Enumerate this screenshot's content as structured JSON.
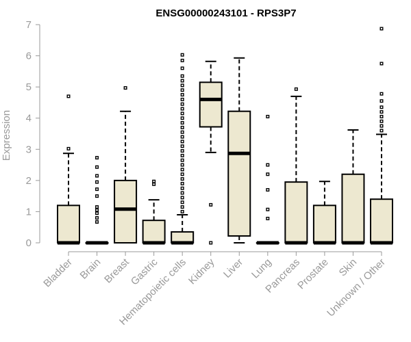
{
  "chart_data": {
    "type": "boxplot",
    "title": "ENSG00000243101 - RPS3P7",
    "xlabel": "",
    "ylabel": "Expression",
    "ylim": [
      0,
      7
    ],
    "yticks": [
      0,
      1,
      2,
      3,
      4,
      5,
      6,
      7
    ],
    "categories": [
      "Bladder",
      "Brain",
      "Breast",
      "Gastric",
      "Hematopoietic cells",
      "Kidney",
      "Liver",
      "Lung",
      "Pancreas",
      "Prostate",
      "Skin",
      "Unknown / Other"
    ],
    "box_color": "#EDE8D0",
    "series": [
      {
        "category": "Bladder",
        "min": 0,
        "q1": 0,
        "median": 0,
        "q3": 1.2,
        "max": 2.87,
        "outliers": [
          3.02,
          4.7
        ]
      },
      {
        "category": "Brain",
        "min": 0,
        "q1": 0,
        "median": 0,
        "q3": 0,
        "max": 0,
        "outliers": [
          0.67,
          0.8,
          0.95,
          1.05,
          1.15,
          1.5,
          1.72,
          1.95,
          2.15,
          2.43,
          2.73
        ]
      },
      {
        "category": "Breast",
        "min": 0,
        "q1": 0,
        "median": 1.08,
        "q3": 2.0,
        "max": 4.22,
        "outliers": [
          4.97
        ]
      },
      {
        "category": "Gastric",
        "min": 0,
        "q1": 0,
        "median": 0,
        "q3": 0.72,
        "max": 1.38,
        "outliers": [
          1.88,
          1.97
        ]
      },
      {
        "category": "Hematopoietic cells",
        "min": 0,
        "q1": 0,
        "median": 0,
        "q3": 0.35,
        "max": 0.9,
        "outliers": [
          1.0,
          1.15,
          1.3,
          1.45,
          1.6,
          1.75,
          1.9,
          2.05,
          2.2,
          2.35,
          2.5,
          2.65,
          2.8,
          2.95,
          3.1,
          3.25,
          3.4,
          3.55,
          3.7,
          3.85,
          4.0,
          4.15,
          4.3,
          4.45,
          4.6,
          4.75,
          4.9,
          5.05,
          5.2,
          5.35,
          5.6,
          5.85,
          6.03
        ]
      },
      {
        "category": "Kidney",
        "min": 2.9,
        "q1": 3.72,
        "median": 4.6,
        "q3": 5.15,
        "max": 5.82,
        "outliers": [
          0,
          1.22
        ]
      },
      {
        "category": "Liver",
        "min": 0,
        "q1": 0.22,
        "median": 2.87,
        "q3": 4.22,
        "max": 5.93,
        "outliers": []
      },
      {
        "category": "Lung",
        "min": 0,
        "q1": 0,
        "median": 0,
        "q3": 0,
        "max": 0,
        "outliers": [
          0.78,
          1.07,
          1.7,
          2.2,
          2.5,
          4.05
        ]
      },
      {
        "category": "Pancreas",
        "min": 0,
        "q1": 0,
        "median": 0,
        "q3": 1.95,
        "max": 4.7,
        "outliers": [
          4.93
        ]
      },
      {
        "category": "Prostate",
        "min": 0,
        "q1": 0,
        "median": 0,
        "q3": 1.2,
        "max": 1.97,
        "outliers": []
      },
      {
        "category": "Skin",
        "min": 0,
        "q1": 0,
        "median": 0,
        "q3": 2.2,
        "max": 3.62,
        "outliers": []
      },
      {
        "category": "Unknown / Other",
        "min": 0,
        "q1": 0,
        "median": 0,
        "q3": 1.4,
        "max": 3.48,
        "outliers": [
          3.6,
          3.75,
          3.9,
          4.05,
          4.2,
          4.35,
          4.55,
          4.78,
          5.75,
          6.87
        ]
      }
    ]
  }
}
